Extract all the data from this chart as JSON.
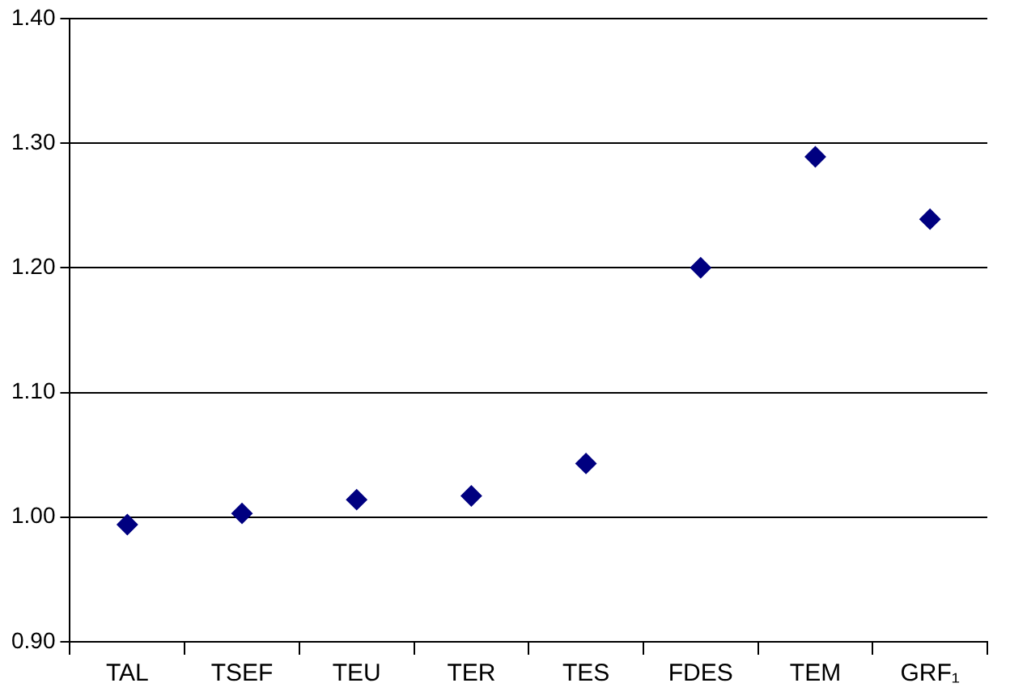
{
  "chart_data": {
    "type": "scatter",
    "categories": [
      "TAL",
      "TSEF",
      "TEU",
      "TER",
      "TES",
      "FDES",
      "TEM",
      "GRF₁"
    ],
    "values": [
      0.994,
      1.003,
      1.014,
      1.017,
      1.043,
      1.2,
      1.289,
      1.239
    ],
    "color": "#000080",
    "marker": "diamond",
    "ylim": [
      0.9,
      1.4
    ],
    "yticks": [
      {
        "value": 0.9,
        "label": "0.90"
      },
      {
        "value": 1.0,
        "label": "1.00"
      },
      {
        "value": 1.1,
        "label": "1.10"
      },
      {
        "value": 1.2,
        "label": "1.20"
      },
      {
        "value": 1.3,
        "label": "1.30"
      },
      {
        "value": 1.4,
        "label": "1.40"
      }
    ],
    "grid": "y",
    "legend": false
  }
}
